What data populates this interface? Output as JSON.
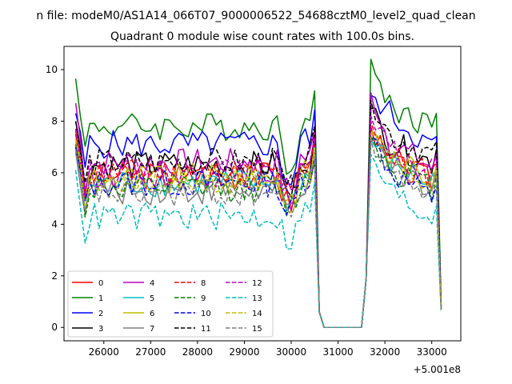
{
  "chart_data": {
    "type": "line",
    "suptitle": "n file: modeM0/AS1A14_066T07_9000006522_54688cztM0_level2_quad_clean",
    "title": "Quadrant 0 module wise count rates with 100.0s bins.",
    "x_offset_label": "+5.001e8",
    "xlim": [
      25150,
      33620
    ],
    "ylim": [
      -0.52,
      10.9
    ],
    "x_ticks": [
      26000,
      27000,
      28000,
      29000,
      30000,
      31000,
      32000,
      33000
    ],
    "x_tick_labels": [
      "26000",
      "27000",
      "28000",
      "29000",
      "30000",
      "31000",
      "32000",
      "33000"
    ],
    "y_ticks": [
      0,
      2,
      4,
      6,
      8,
      10
    ],
    "y_tick_labels": [
      "0",
      "2",
      "4",
      "6",
      "8",
      "10"
    ],
    "legend_position": "lower-left",
    "legend_columns": 4,
    "x_start": 25400,
    "x_step": 100,
    "key_points": [
      {
        "x": 25400,
        "note": "series start"
      },
      {
        "x": 30500,
        "note": "last high bin before drop"
      },
      {
        "x": 30600,
        "note": "drop"
      },
      {
        "x": 30700,
        "note": "zero level begins"
      },
      {
        "x": 31500,
        "note": "zero level ends"
      },
      {
        "x": 31600,
        "note": "rise"
      },
      {
        "x": 31700,
        "note": "peak after rise"
      },
      {
        "x": 33100,
        "note": "last high bin"
      },
      {
        "x": 33200,
        "note": "series end"
      }
    ],
    "series": [
      {
        "name": "0",
        "color": "#ff0000",
        "dash": "solid",
        "level": 5.9,
        "first": 7.5,
        "dip": 4.7,
        "peak": 7.8,
        "post": 6.3,
        "end_val": 5.6,
        "last": 0.7
      },
      {
        "name": "1",
        "color": "#008000",
        "dash": "solid",
        "level": 7.8,
        "first": 9.65,
        "dip": 6.1,
        "peak": 10.4,
        "post": 8.6,
        "end_val": 7.7,
        "last": 1.0
      },
      {
        "name": "2",
        "color": "#0000ff",
        "dash": "solid",
        "level": 7.1,
        "first": 8.3,
        "dip": 5.5,
        "peak": 9.0,
        "post": 8.3,
        "end_val": 6.8,
        "last": 0.8
      },
      {
        "name": "3",
        "color": "#000000",
        "dash": "solid",
        "level": 6.3,
        "first": 8.0,
        "dip": 5.0,
        "peak": 8.5,
        "post": 7.2,
        "end_val": 6.3,
        "last": 0.8
      },
      {
        "name": "4",
        "color": "#bf00bf",
        "dash": "solid",
        "level": 6.4,
        "first": 8.7,
        "dip": 5.2,
        "peak": 9.1,
        "post": 7.2,
        "end_val": 6.1,
        "last": 0.8
      },
      {
        "name": "5",
        "color": "#00bfbf",
        "dash": "solid",
        "level": 5.6,
        "first": 7.0,
        "dip": 4.8,
        "peak": 7.3,
        "post": 6.4,
        "end_val": 5.5,
        "last": 0.7
      },
      {
        "name": "6",
        "color": "#bfbf00",
        "dash": "solid",
        "level": 5.8,
        "first": 7.2,
        "dip": 4.9,
        "peak": 7.6,
        "post": 6.6,
        "end_val": 5.7,
        "last": 0.7
      },
      {
        "name": "7",
        "color": "#808080",
        "dash": "solid",
        "level": 5.3,
        "first": 6.8,
        "dip": 4.5,
        "peak": 7.2,
        "post": 6.2,
        "end_val": 5.4,
        "last": 0.7
      },
      {
        "name": "8",
        "color": "#ff0000",
        "dash": "dashed",
        "level": 6.0,
        "first": 7.6,
        "dip": 5.0,
        "peak": 8.0,
        "post": 6.7,
        "end_val": 5.8,
        "last": 0.7
      },
      {
        "name": "9",
        "color": "#008000",
        "dash": "dashed",
        "level": 5.4,
        "first": 7.1,
        "dip": 4.6,
        "peak": 7.4,
        "post": 6.2,
        "end_val": 5.3,
        "last": 0.7
      },
      {
        "name": "10",
        "color": "#0000ff",
        "dash": "dashed",
        "level": 5.6,
        "first": 7.0,
        "dip": 4.3,
        "peak": 7.4,
        "post": 6.1,
        "end_val": 4.9,
        "last": 0.7
      },
      {
        "name": "11",
        "color": "#000000",
        "dash": "dashed",
        "level": 6.4,
        "first": 8.0,
        "dip": 5.2,
        "peak": 8.8,
        "post": 7.5,
        "end_val": 6.6,
        "last": 0.8
      },
      {
        "name": "12",
        "color": "#bf00bf",
        "dash": "dashed",
        "level": 6.0,
        "first": 7.7,
        "dip": 4.9,
        "peak": 8.2,
        "post": 6.8,
        "end_val": 5.9,
        "last": 0.7
      },
      {
        "name": "13",
        "color": "#00bfbf",
        "dash": "dashed",
        "level": 4.3,
        "first": 6.1,
        "dip": 3.3,
        "peak": 6.7,
        "post": 5.3,
        "end_val": 4.1,
        "last": 0.6
      },
      {
        "name": "14",
        "color": "#bfbf00",
        "dash": "dashed",
        "level": 5.7,
        "first": 7.3,
        "dip": 4.6,
        "peak": 7.5,
        "post": 6.4,
        "end_val": 5.5,
        "last": 0.7
      },
      {
        "name": "15",
        "color": "#808080",
        "dash": "dashed",
        "level": 5.2,
        "first": 6.9,
        "dip": 4.4,
        "peak": 7.3,
        "post": 6.0,
        "end_val": 5.3,
        "last": 0.7
      }
    ]
  }
}
